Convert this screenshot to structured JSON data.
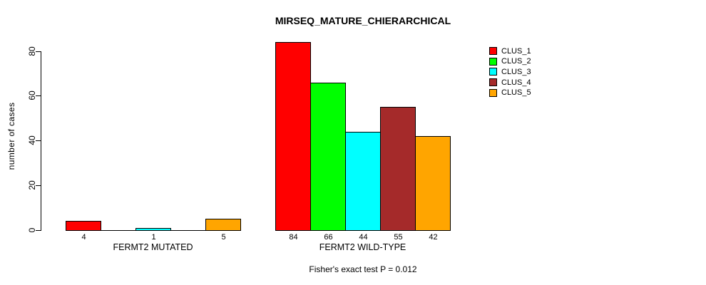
{
  "chart_data": {
    "type": "bar",
    "title": "MIRSEQ_MATURE_CHIERARCHICAL",
    "xlabel": "",
    "ylabel": "number of cases",
    "ylim": [
      0,
      80
    ],
    "yticks": [
      0,
      20,
      40,
      60,
      80
    ],
    "grid": false,
    "categories": [
      "FERMT2 MUTATED",
      "FERMT2 WILD-TYPE"
    ],
    "series": [
      {
        "name": "CLUS_1",
        "color": "#FF0000",
        "values": [
          4,
          84
        ]
      },
      {
        "name": "CLUS_2",
        "color": "#00FF00",
        "values": [
          0,
          66
        ]
      },
      {
        "name": "CLUS_3",
        "color": "#00FFFF",
        "values": [
          1,
          44
        ]
      },
      {
        "name": "CLUS_4",
        "color": "#A52A2A",
        "values": [
          0,
          55
        ]
      },
      {
        "name": "CLUS_5",
        "color": "#FFA500",
        "values": [
          5,
          42
        ]
      }
    ],
    "bar_value_labels_shown": [
      "4",
      "1",
      "5",
      "84",
      "66",
      "44",
      "55",
      "42"
    ],
    "zero_value_labels_hidden": true,
    "legend": {
      "position": "top-right",
      "entries": [
        "CLUS_1",
        "CLUS_2",
        "CLUS_3",
        "CLUS_4",
        "CLUS_5"
      ]
    },
    "annotation": "Fisher's exact test P = 0.012",
    "colors": {
      "background": "#FFFFFF",
      "axis": "#000000",
      "bar_border": "#000000"
    }
  }
}
